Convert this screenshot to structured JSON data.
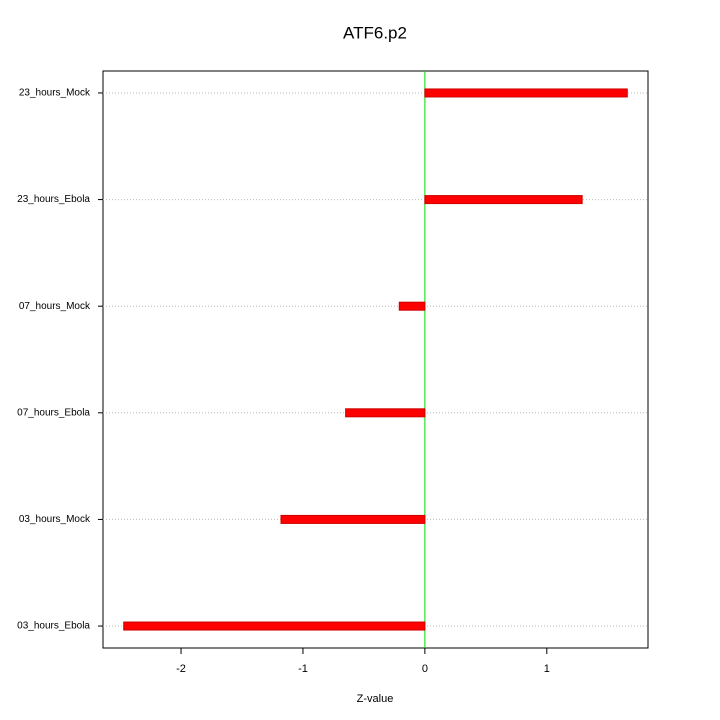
{
  "chart_data": {
    "type": "barh",
    "title": "ATF6.p2",
    "xlabel": "Z-value",
    "categories": [
      "03_hours_Ebola",
      "03_hours_Mock",
      "07_hours_Ebola",
      "07_hours_Mock",
      "23_hours_Ebola",
      "23_hours_Mock"
    ],
    "values": [
      -2.47,
      -1.18,
      -0.65,
      -0.21,
      1.29,
      1.66
    ],
    "color": "#ff0000",
    "zero_line_color": "#00dd00",
    "xlim": [
      -2.64,
      1.83
    ],
    "xticks": [
      -2,
      -1,
      0,
      1
    ],
    "grid": true
  }
}
